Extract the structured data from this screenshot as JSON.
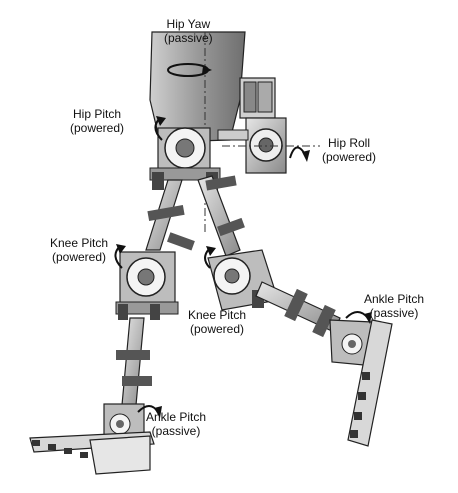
{
  "labels": {
    "hip_yaw": {
      "name": "Hip Yaw",
      "mode": "(passive)"
    },
    "hip_pitch": {
      "name": "Hip Pitch",
      "mode": "(powered)"
    },
    "hip_roll": {
      "name": "Hip Roll",
      "mode": "(powered)"
    },
    "knee_left": {
      "name": "Knee Pitch",
      "mode": "(powered)"
    },
    "knee_right": {
      "name": "Knee Pitch",
      "mode": "(powered)"
    },
    "ankle_right": {
      "name": "Ankle Pitch",
      "mode": "(passive)"
    },
    "ankle_left": {
      "name": "Ankle Pitch",
      "mode": "(passive)"
    }
  }
}
